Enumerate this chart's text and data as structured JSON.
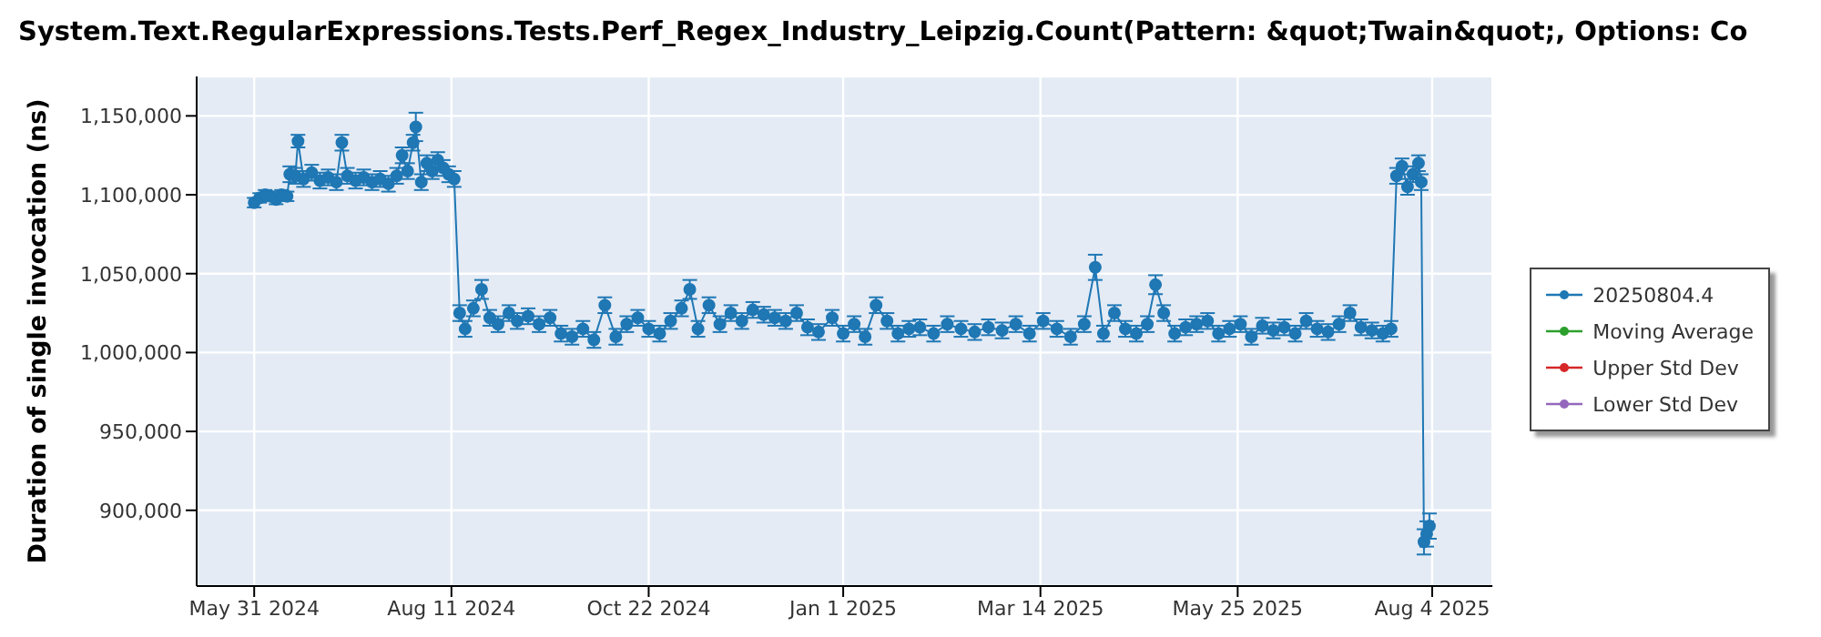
{
  "chart_data": {
    "type": "line",
    "title": "System.Text.RegularExpressions.Tests.Perf_Regex_Industry_Leipzig.Count(Pattern: &quot;Twain&quot;, Options: Co",
    "ylabel": "Duration of single invocation (ns)",
    "xlim": [
      "2024-05-10",
      "2025-08-26"
    ],
    "xticks": [
      {
        "value": "2024-05-31",
        "label": "May 31 2024"
      },
      {
        "value": "2024-08-11",
        "label": "Aug 11 2024"
      },
      {
        "value": "2024-10-22",
        "label": "Oct 22 2024"
      },
      {
        "value": "2025-01-01",
        "label": "Jan 1 2025"
      },
      {
        "value": "2025-03-14",
        "label": "Mar 14 2025"
      },
      {
        "value": "2025-05-25",
        "label": "May 25 2025"
      },
      {
        "value": "2025-08-04",
        "label": "Aug 4 2025"
      }
    ],
    "ylim": [
      852000,
      1175000
    ],
    "yticks": [
      {
        "value": 900000,
        "label": "900,000"
      },
      {
        "value": 950000,
        "label": "950,000"
      },
      {
        "value": 1000000,
        "label": "1,000,000"
      },
      {
        "value": 1050000,
        "label": "1,050,000"
      },
      {
        "value": 1100000,
        "label": "1,100,000"
      },
      {
        "value": 1150000,
        "label": "1,150,000"
      }
    ],
    "grid": true,
    "legend": "right",
    "marker": "circle",
    "line_style": "solid",
    "series": [
      {
        "name": "20250804.4",
        "color": "#1f77b4",
        "x": [
          "2024-05-31",
          "2024-06-02",
          "2024-06-04",
          "2024-06-06",
          "2024-06-08",
          "2024-06-10",
          "2024-06-12",
          "2024-06-13",
          "2024-06-15",
          "2024-06-16",
          "2024-06-18",
          "2024-06-21",
          "2024-06-24",
          "2024-06-27",
          "2024-06-30",
          "2024-07-02",
          "2024-07-04",
          "2024-07-07",
          "2024-07-10",
          "2024-07-13",
          "2024-07-16",
          "2024-07-19",
          "2024-07-22",
          "2024-07-24",
          "2024-07-26",
          "2024-07-28",
          "2024-07-29",
          "2024-07-31",
          "2024-08-02",
          "2024-08-04",
          "2024-08-06",
          "2024-08-08",
          "2024-08-10",
          "2024-08-12",
          "2024-08-14",
          "2024-08-16",
          "2024-08-19",
          "2024-08-22",
          "2024-08-25",
          "2024-08-28",
          "2024-09-01",
          "2024-09-04",
          "2024-09-08",
          "2024-09-12",
          "2024-09-16",
          "2024-09-20",
          "2024-09-24",
          "2024-09-28",
          "2024-10-02",
          "2024-10-06",
          "2024-10-10",
          "2024-10-14",
          "2024-10-18",
          "2024-10-22",
          "2024-10-26",
          "2024-10-30",
          "2024-11-03",
          "2024-11-06",
          "2024-11-09",
          "2024-11-13",
          "2024-11-17",
          "2024-11-21",
          "2024-11-25",
          "2024-11-29",
          "2024-12-03",
          "2024-12-07",
          "2024-12-11",
          "2024-12-15",
          "2024-12-19",
          "2024-12-23",
          "2024-12-28",
          "2025-01-01",
          "2025-01-05",
          "2025-01-09",
          "2025-01-13",
          "2025-01-17",
          "2025-01-21",
          "2025-01-25",
          "2025-01-29",
          "2025-02-03",
          "2025-02-08",
          "2025-02-13",
          "2025-02-18",
          "2025-02-23",
          "2025-02-28",
          "2025-03-05",
          "2025-03-10",
          "2025-03-15",
          "2025-03-20",
          "2025-03-25",
          "2025-03-30",
          "2025-04-03",
          "2025-04-06",
          "2025-04-10",
          "2025-04-14",
          "2025-04-18",
          "2025-04-22",
          "2025-04-25",
          "2025-04-28",
          "2025-05-02",
          "2025-05-06",
          "2025-05-10",
          "2025-05-14",
          "2025-05-18",
          "2025-05-22",
          "2025-05-26",
          "2025-05-30",
          "2025-06-03",
          "2025-06-07",
          "2025-06-11",
          "2025-06-15",
          "2025-06-19",
          "2025-06-23",
          "2025-06-27",
          "2025-07-01",
          "2025-07-05",
          "2025-07-09",
          "2025-07-13",
          "2025-07-17",
          "2025-07-20",
          "2025-07-22",
          "2025-07-24",
          "2025-07-26",
          "2025-07-28",
          "2025-07-30",
          "2025-07-31",
          "2025-08-01",
          "2025-08-02",
          "2025-08-03"
        ],
        "values": [
          1095000,
          1098000,
          1100000,
          1099000,
          1097000,
          1100000,
          1099000,
          1113000,
          1112000,
          1134000,
          1110000,
          1114000,
          1109000,
          1111000,
          1108000,
          1133000,
          1112000,
          1109000,
          1111000,
          1108000,
          1110000,
          1107000,
          1112000,
          1125000,
          1115000,
          1133000,
          1143000,
          1108000,
          1120000,
          1115000,
          1122000,
          1117000,
          1113000,
          1110000,
          1025000,
          1015000,
          1028000,
          1040000,
          1022000,
          1018000,
          1025000,
          1020000,
          1023000,
          1018000,
          1022000,
          1012000,
          1010000,
          1015000,
          1008000,
          1030000,
          1010000,
          1018000,
          1022000,
          1015000,
          1012000,
          1020000,
          1028000,
          1040000,
          1015000,
          1030000,
          1018000,
          1025000,
          1020000,
          1027000,
          1024000,
          1022000,
          1020000,
          1025000,
          1016000,
          1013000,
          1022000,
          1012000,
          1018000,
          1010000,
          1030000,
          1020000,
          1012000,
          1015000,
          1016000,
          1012000,
          1018000,
          1015000,
          1013000,
          1016000,
          1014000,
          1018000,
          1012000,
          1020000,
          1015000,
          1010000,
          1018000,
          1054000,
          1012000,
          1025000,
          1015000,
          1012000,
          1018000,
          1043000,
          1025000,
          1012000,
          1016000,
          1018000,
          1020000,
          1012000,
          1015000,
          1018000,
          1010000,
          1017000,
          1014000,
          1016000,
          1012000,
          1020000,
          1015000,
          1013000,
          1018000,
          1025000,
          1016000,
          1014000,
          1012000,
          1015000,
          1112000,
          1118000,
          1105000,
          1113000,
          1120000,
          1108000,
          880000,
          885000,
          890000
        ],
        "errors": [
          3000,
          3000,
          3000,
          3000,
          3000,
          3000,
          3000,
          5000,
          5000,
          4000,
          5000,
          5000,
          5000,
          5000,
          5000,
          5000,
          5000,
          5000,
          5000,
          5000,
          5000,
          5000,
          5000,
          5000,
          5000,
          5000,
          9000,
          5000,
          5000,
          5000,
          5000,
          5000,
          5000,
          5000,
          5000,
          5000,
          5000,
          6000,
          5000,
          5000,
          5000,
          5000,
          5000,
          5000,
          5000,
          5000,
          5000,
          5000,
          5000,
          5000,
          5000,
          5000,
          5000,
          5000,
          5000,
          5000,
          5000,
          6000,
          5000,
          5000,
          5000,
          5000,
          5000,
          5000,
          5000,
          5000,
          5000,
          5000,
          5000,
          5000,
          5000,
          5000,
          5000,
          5000,
          5000,
          5000,
          5000,
          5000,
          5000,
          5000,
          5000,
          5000,
          5000,
          5000,
          5000,
          5000,
          5000,
          5000,
          5000,
          5000,
          5000,
          8000,
          5000,
          5000,
          5000,
          5000,
          5000,
          6000,
          5000,
          5000,
          5000,
          5000,
          5000,
          5000,
          5000,
          5000,
          5000,
          5000,
          5000,
          5000,
          5000,
          5000,
          5000,
          5000,
          5000,
          5000,
          5000,
          5000,
          5000,
          5000,
          5000,
          5000,
          5000,
          5000,
          5000,
          5000,
          8000,
          8000,
          8000
        ]
      },
      {
        "name": "Moving Average",
        "color": "#2ca02c"
      },
      {
        "name": "Upper Std Dev",
        "color": "#d62728"
      },
      {
        "name": "Lower Std Dev",
        "color": "#9467bd"
      }
    ]
  }
}
